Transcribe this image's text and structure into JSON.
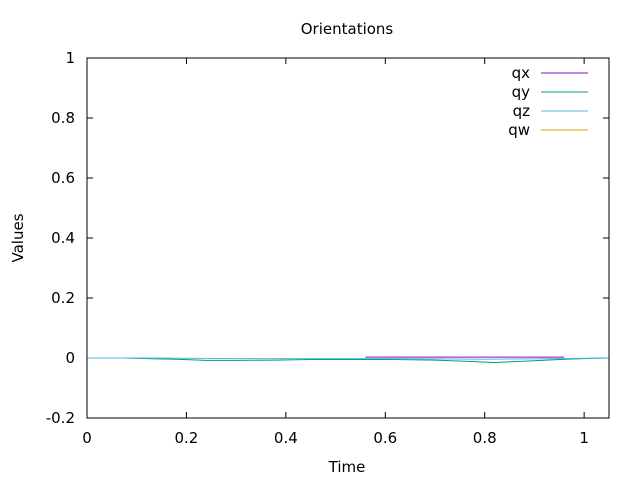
{
  "chart_data": {
    "type": "line",
    "title": "Orientations",
    "xlabel": "Time",
    "ylabel": "Values",
    "xlim": [
      0,
      1.05
    ],
    "ylim": [
      -0.2,
      1
    ],
    "grid": false,
    "legend_position": "top-right",
    "x_ticks": [
      {
        "value": 0,
        "label": "0"
      },
      {
        "value": 0.2,
        "label": "0.2"
      },
      {
        "value": 0.4,
        "label": "0.4"
      },
      {
        "value": 0.6,
        "label": "0.6"
      },
      {
        "value": 0.8,
        "label": "0.8"
      },
      {
        "value": 1,
        "label": "1"
      }
    ],
    "y_ticks": [
      {
        "value": -0.2,
        "label": "-0.2"
      },
      {
        "value": 0,
        "label": "0"
      },
      {
        "value": 0.2,
        "label": "0.2"
      },
      {
        "value": 0.4,
        "label": "0.4"
      },
      {
        "value": 0.6,
        "label": "0.6"
      },
      {
        "value": 0.8,
        "label": "0.8"
      },
      {
        "value": 1,
        "label": "1"
      }
    ],
    "series": [
      {
        "name": "qx",
        "color": "#9400d3",
        "points": [
          [
            0.56,
            0.003
          ],
          [
            0.65,
            0.003
          ],
          [
            0.75,
            0.003
          ],
          [
            0.85,
            0.003
          ],
          [
            0.96,
            0.003
          ]
        ]
      },
      {
        "name": "qy",
        "color": "#009e73",
        "points": [
          [
            0,
            0.0
          ],
          [
            0.07,
            0.0
          ],
          [
            0.12,
            -0.002
          ],
          [
            0.18,
            -0.004
          ],
          [
            0.24,
            -0.008
          ],
          [
            0.3,
            -0.008
          ],
          [
            0.38,
            -0.007
          ],
          [
            0.45,
            -0.005
          ],
          [
            0.55,
            -0.005
          ],
          [
            0.62,
            -0.005
          ],
          [
            0.7,
            -0.007
          ],
          [
            0.76,
            -0.011
          ],
          [
            0.82,
            -0.015
          ],
          [
            0.86,
            -0.012
          ],
          [
            0.9,
            -0.009
          ],
          [
            0.96,
            -0.004
          ],
          [
            1.0,
            -0.002
          ],
          [
            1.05,
            0.0
          ]
        ]
      },
      {
        "name": "qz",
        "color": "#56b4e9",
        "points": [
          [
            0,
            0.0
          ],
          [
            0.1,
            0.0
          ],
          [
            0.2,
            -0.001
          ],
          [
            0.3,
            -0.002
          ],
          [
            0.4,
            -0.002
          ],
          [
            0.5,
            -0.002
          ],
          [
            0.6,
            -0.002
          ],
          [
            0.7,
            -0.003
          ],
          [
            0.8,
            -0.004
          ],
          [
            0.9,
            -0.003
          ],
          [
            1.0,
            -0.001
          ],
          [
            1.05,
            0.0
          ]
        ]
      },
      {
        "name": "qw",
        "color": "#e69f00",
        "points": []
      }
    ]
  }
}
